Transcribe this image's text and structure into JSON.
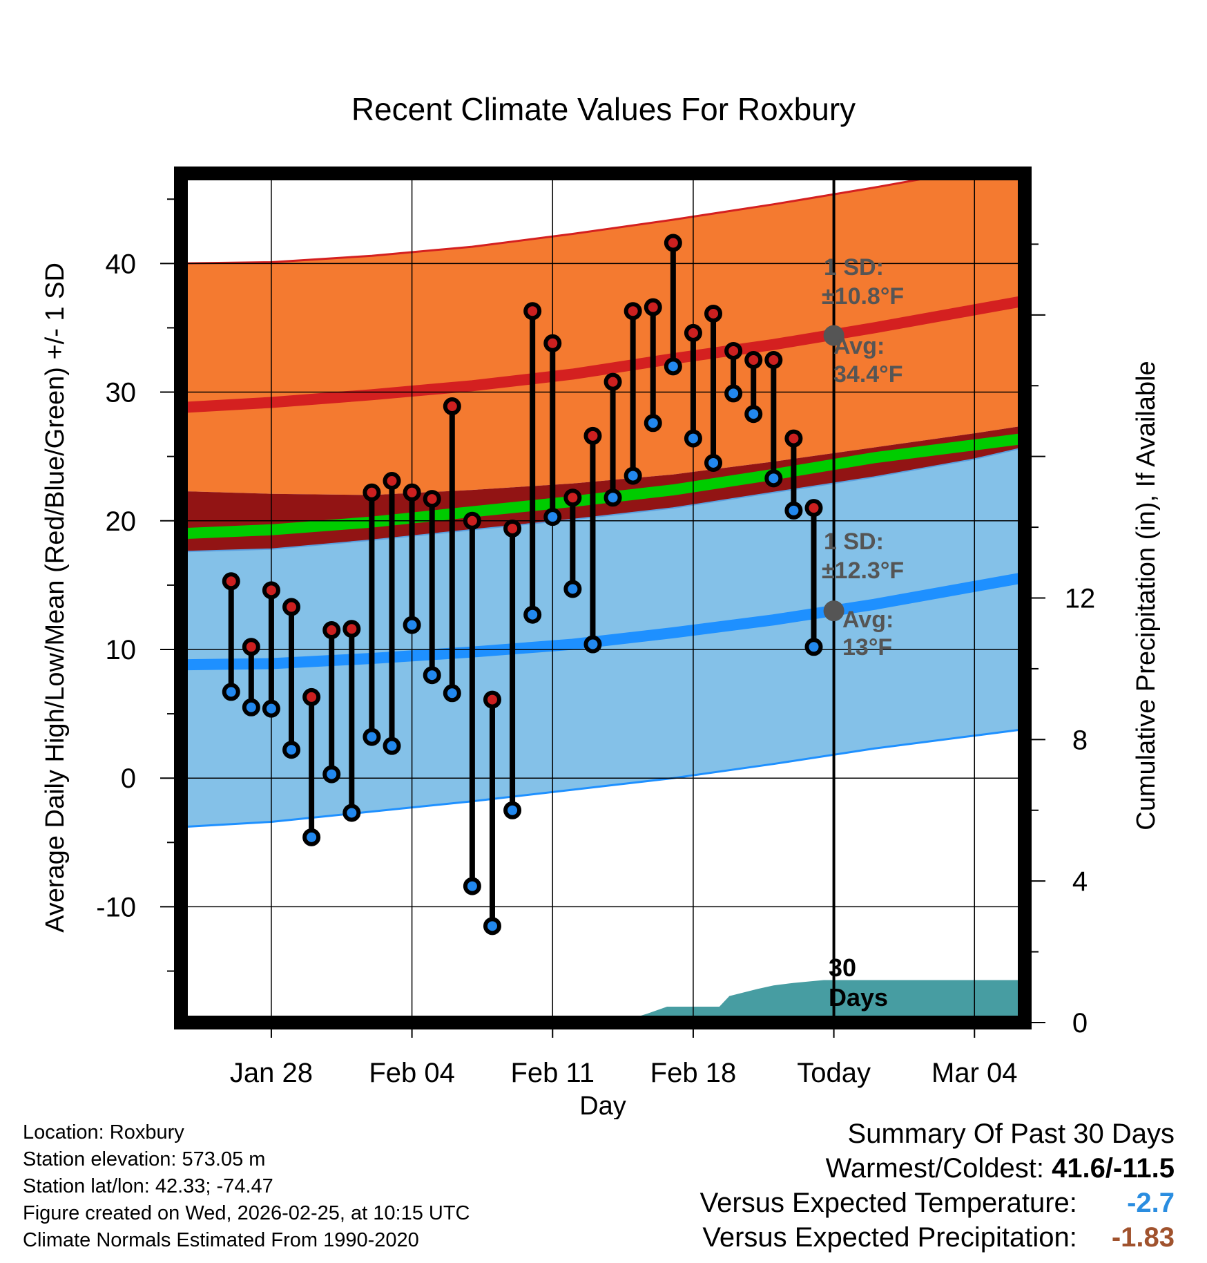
{
  "chart_data": {
    "type": "line",
    "title": "Recent Climate Values For Roxbury",
    "xlabel": "Day",
    "ylabel": "Average Daily High/Low/Mean (Red/Blue/Green) +/- 1 SD",
    "y2label": "Cumulative Precipitation (in), If Available",
    "xlim": [
      -4.5,
      37.5
    ],
    "ylim": [
      -19,
      47
    ],
    "y2lim": [
      0,
      24
    ],
    "x_ticks": [
      {
        "day": 0,
        "label": "Jan 28"
      },
      {
        "day": 7,
        "label": "Feb 04"
      },
      {
        "day": 14,
        "label": "Feb 11"
      },
      {
        "day": 21,
        "label": "Feb 18"
      },
      {
        "day": 28,
        "label": "Today"
      },
      {
        "day": 35,
        "label": "Mar 04"
      }
    ],
    "y_ticks": [
      -10,
      0,
      10,
      20,
      30,
      40
    ],
    "y2_ticks": [
      0,
      4,
      8,
      12
    ],
    "today_day": 28,
    "normals": {
      "days": [
        -4.5,
        0,
        5,
        10,
        15,
        20,
        25,
        30,
        35,
        37.5
      ],
      "high_avg": [
        28.8,
        29.2,
        29.8,
        30.5,
        31.4,
        32.6,
        33.7,
        35.0,
        36.4,
        37.1
      ],
      "high_upper": [
        40.0,
        40.1,
        40.6,
        41.3,
        42.3,
        43.4,
        44.6,
        45.9,
        47.3,
        48.0
      ],
      "high_lower": [
        22.3,
        22.1,
        22.0,
        22.4,
        22.9,
        23.6,
        24.6,
        25.7,
        26.8,
        27.4
      ],
      "mean_avg": [
        19.0,
        19.3,
        19.9,
        20.7,
        21.5,
        22.4,
        23.6,
        24.9,
        25.9,
        26.4
      ],
      "low_avg": [
        8.8,
        8.9,
        9.3,
        9.8,
        10.4,
        11.3,
        12.3,
        13.5,
        14.9,
        15.6
      ],
      "low_upper": [
        17.6,
        17.8,
        18.5,
        19.3,
        20.1,
        21.0,
        22.2,
        23.4,
        24.8,
        25.7
      ],
      "low_lower": [
        -3.8,
        -3.4,
        -2.6,
        -1.8,
        -0.9,
        0.0,
        1.1,
        2.3,
        3.3,
        3.8
      ]
    },
    "series": [
      {
        "name": "High",
        "color": "#cc2020",
        "days": [
          -2,
          -1,
          0,
          1,
          2,
          3,
          4,
          5,
          6,
          7,
          8,
          9,
          10,
          11,
          12,
          13,
          14,
          15,
          16,
          17,
          18,
          19,
          20,
          21,
          22,
          23,
          24,
          25,
          26,
          27
        ],
        "values": [
          15.3,
          10.2,
          14.6,
          13.3,
          6.3,
          11.5,
          11.6,
          22.2,
          23.1,
          22.2,
          21.7,
          28.9,
          20.0,
          6.1,
          19.4,
          36.3,
          33.8,
          21.8,
          26.6,
          30.8,
          36.3,
          36.6,
          41.6,
          34.6,
          36.1,
          33.2,
          32.5,
          32.5,
          26.4,
          21.0
        ]
      },
      {
        "name": "Low",
        "color": "#2288ee",
        "days": [
          -2,
          -1,
          0,
          1,
          2,
          3,
          4,
          5,
          6,
          7,
          8,
          9,
          10,
          11,
          12,
          13,
          14,
          15,
          16,
          17,
          18,
          19,
          20,
          21,
          22,
          23,
          24,
          25,
          26,
          27
        ],
        "values": [
          6.7,
          5.5,
          5.4,
          2.2,
          -4.6,
          0.3,
          -2.7,
          3.2,
          2.5,
          11.9,
          8.0,
          6.6,
          -8.4,
          -11.5,
          -2.5,
          12.7,
          20.3,
          14.7,
          10.4,
          21.8,
          23.5,
          27.6,
          32.0,
          26.4,
          24.5,
          29.9,
          28.3,
          23.3,
          20.8,
          10.2
        ]
      }
    ],
    "precipitation": {
      "days": [
        16.7,
        17.8,
        18.7,
        19.7,
        22.3,
        22.8,
        24.2,
        25.0,
        26.0,
        27.5,
        30.0,
        37.5
      ],
      "cumulative": [
        0.0,
        0.09,
        0.25,
        0.45,
        0.45,
        0.75,
        0.95,
        1.05,
        1.12,
        1.2,
        1.2,
        1.2
      ]
    },
    "annotations": {
      "high_sd": "1 SD:",
      "high_sd_val": "±10.8°F",
      "high_avg_lbl": "Avg:",
      "high_avg_val": "34.4°F",
      "high_avg_value": 34.4,
      "low_sd": "1 SD:",
      "low_sd_val": "±12.3°F",
      "low_avg_lbl": "Avg:",
      "low_avg_val": "13°F",
      "low_avg_value": 13,
      "days_lbl_1": "30",
      "days_lbl_2": "Days"
    },
    "colors": {
      "high_band": "#f47a30",
      "high_line": "#d42020",
      "low_band": "#84c1e8",
      "low_line": "#1e90ff",
      "overlap": "#921414",
      "mean_line": "#00cc00",
      "precip": "#479da2",
      "avg_dot": "#555555"
    }
  },
  "footer": {
    "location": "Location: Roxbury",
    "elevation": "Station elevation: 573.05 m",
    "latlon": "Station lat/lon: 42.33; -74.47",
    "created": "Figure created on Wed, 2026-02-25, at 10:15 UTC",
    "normals": "Climate Normals Estimated From 1990-2020"
  },
  "summary": {
    "title": "Summary Of Past 30 Days",
    "warm_cold_label": "Warmest/Coldest: ",
    "warm_cold_value": "41.6/-11.5",
    "temp_label": "Versus Expected Temperature: ",
    "temp_value": "-2.7",
    "temp_color": "#2a8de0",
    "precip_label": "Versus Expected Precipitation: ",
    "precip_value": "-1.83",
    "precip_color": "#a0522d"
  }
}
